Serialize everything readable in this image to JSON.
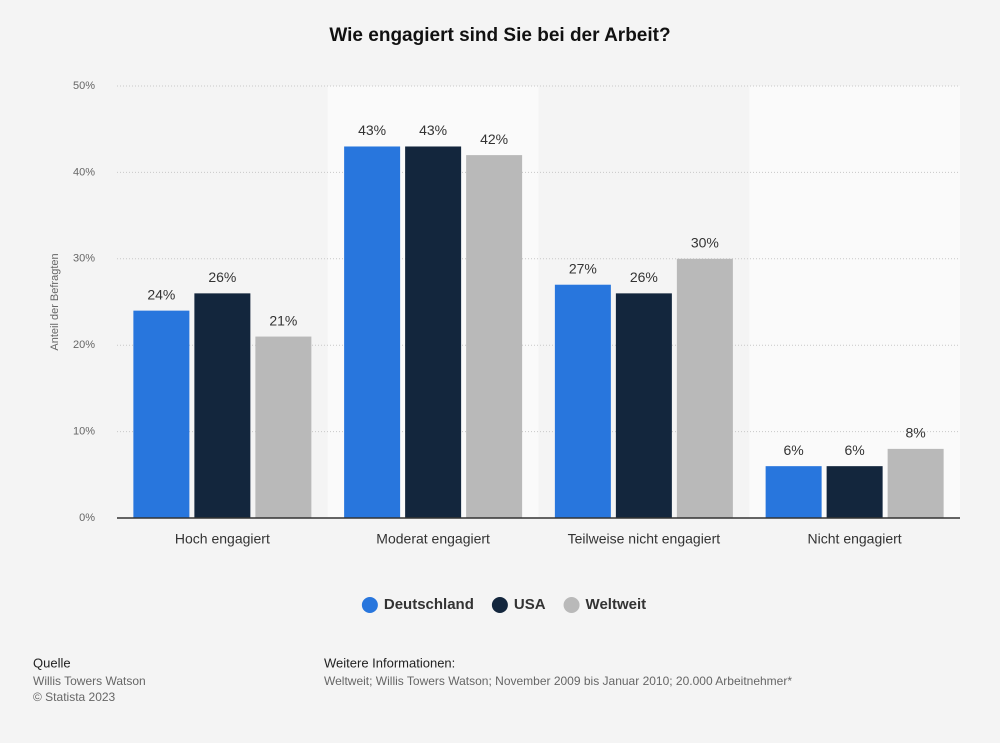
{
  "chart_data": {
    "type": "bar",
    "title": "Wie engagiert sind Sie bei der Arbeit?",
    "y_label": "Anteil der Befragten",
    "categories": [
      "Hoch engagiert",
      "Moderat engagiert",
      "Teilweise nicht engagiert",
      "Nicht engagiert"
    ],
    "series": [
      {
        "name": "Deutschland",
        "color": "#2876dd",
        "values": [
          24,
          43,
          27,
          6
        ],
        "value_labels": [
          "24%",
          "43%",
          "27%",
          "6%"
        ]
      },
      {
        "name": "USA",
        "color": "#13263d",
        "values": [
          26,
          43,
          26,
          6
        ],
        "value_labels": [
          "26%",
          "43%",
          "26%",
          "6%"
        ]
      },
      {
        "name": "Weltweit",
        "color": "#b9b9b9",
        "values": [
          21,
          42,
          30,
          8
        ],
        "value_labels": [
          "21%",
          "42%",
          "30%",
          "8%"
        ]
      }
    ],
    "ylim": [
      0,
      50
    ],
    "yticks": [
      {
        "value": 0,
        "label": "0%"
      },
      {
        "value": 10,
        "label": "10%"
      },
      {
        "value": 20,
        "label": "20%"
      },
      {
        "value": 30,
        "label": "30%"
      },
      {
        "value": 40,
        "label": "40%"
      },
      {
        "value": 50,
        "label": "50%"
      }
    ],
    "grid": true,
    "legend": "bottom"
  },
  "footer": {
    "source_title": "Quelle",
    "source": "Willis Towers Watson",
    "copyright": "© Statista 2023",
    "info_title": "Weitere Informationen:",
    "info": "Weltweit; Willis Towers Watson; November 2009 bis Januar 2010; 20.000 Arbeitnehmer*"
  }
}
